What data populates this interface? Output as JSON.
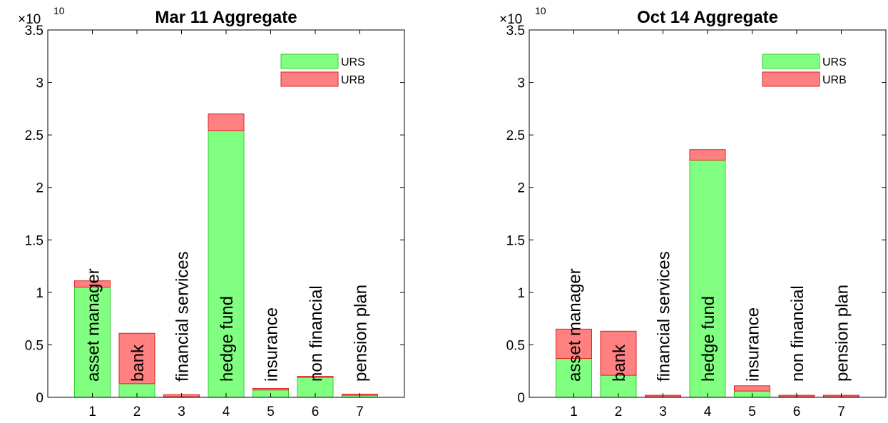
{
  "chart_data": [
    {
      "type": "bar",
      "stacked": true,
      "title": "Mar 11 Aggregate",
      "axis_multiplier": "×10",
      "axis_multiplier_exponent": "10",
      "x": [
        "1",
        "2",
        "3",
        "4",
        "5",
        "6",
        "7"
      ],
      "category_labels": [
        "asset manager",
        "bank",
        "financial services",
        "hedge fund",
        "insurance",
        "non financial",
        "pension plan"
      ],
      "yticks": [
        "0",
        "0.5",
        "1",
        "1.5",
        "2",
        "2.5",
        "3",
        "3.5"
      ],
      "ylim": [
        0,
        3.5
      ],
      "legend_position": "top-right",
      "grid": false,
      "series": [
        {
          "name": "URS",
          "color": "#80ff80",
          "edge": "#33cc33",
          "values": [
            1.05,
            0.13,
            0.005,
            2.54,
            0.07,
            0.19,
            0.02
          ]
        },
        {
          "name": "URB",
          "color": "#ff8080",
          "edge": "#dd2222",
          "values": [
            0.06,
            0.48,
            0.02,
            0.16,
            0.015,
            0.01,
            0.01
          ]
        }
      ]
    },
    {
      "type": "bar",
      "stacked": true,
      "title": "Oct 14 Aggregate",
      "axis_multiplier": "×10",
      "axis_multiplier_exponent": "10",
      "x": [
        "1",
        "2",
        "3",
        "4",
        "5",
        "6",
        "7"
      ],
      "category_labels": [
        "asset manager",
        "bank",
        "financial services",
        "hedge fund",
        "insurance",
        "non financial",
        "pension plan"
      ],
      "yticks": [
        "0",
        "0.5",
        "1",
        "1.5",
        "2",
        "2.5",
        "3",
        "3.5"
      ],
      "ylim": [
        0,
        3.5
      ],
      "legend_position": "top-right",
      "grid": false,
      "series": [
        {
          "name": "URS",
          "color": "#80ff80",
          "edge": "#33cc33",
          "values": [
            0.37,
            0.21,
            0.005,
            2.26,
            0.06,
            0.005,
            0.005
          ]
        },
        {
          "name": "URB",
          "color": "#ff8080",
          "edge": "#dd2222",
          "values": [
            0.28,
            0.42,
            0.015,
            0.1,
            0.05,
            0.015,
            0.015
          ]
        }
      ]
    }
  ]
}
